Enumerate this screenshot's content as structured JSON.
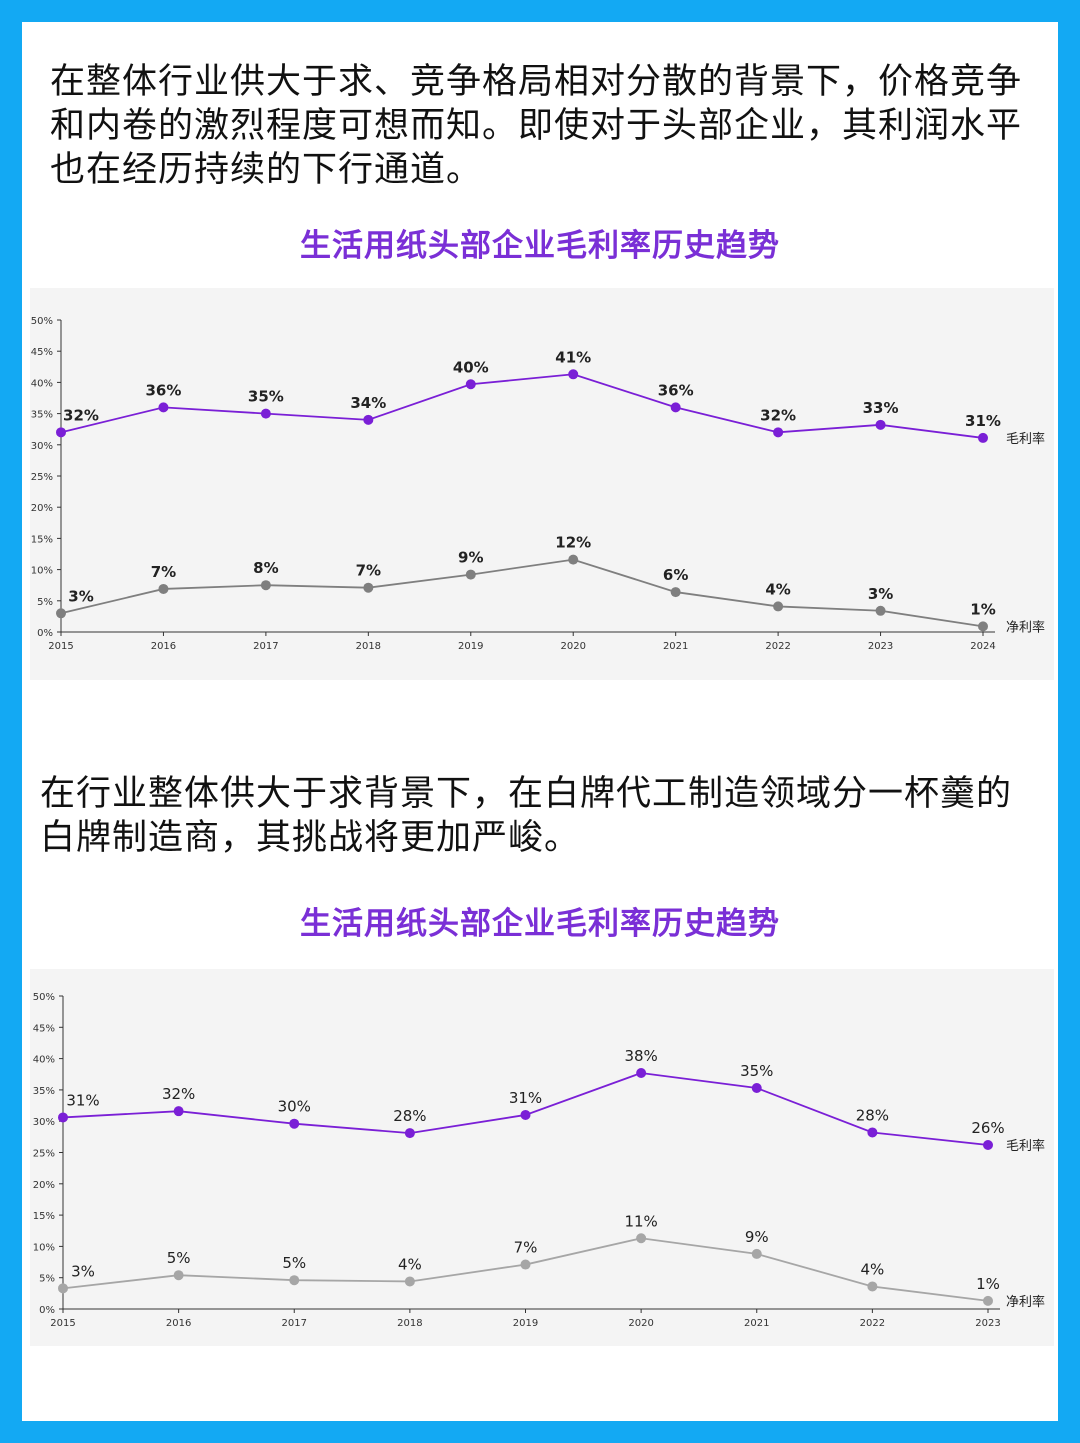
{
  "paragraphs": {
    "p1": "在整体行业供大于求、竞争格局相对分散的背景下，价格竞争和内卷的激烈程度可想而知。即使对于头部企业，其利润水平也在经历持续的下行通道。",
    "p2": "在行业整体供大于求背景下，在白牌代工制造领域分一杯羹的白牌制造商，其挑战将更加严峻。"
  },
  "chart_data": [
    {
      "type": "line",
      "title": "生活用纸头部企业毛利率历史趋势",
      "x": [
        "2015",
        "2016",
        "2017",
        "2018",
        "2019",
        "2020",
        "2021",
        "2022",
        "2023",
        "2024"
      ],
      "yticks": [
        "0%",
        "5%",
        "10%",
        "15%",
        "20%",
        "25%",
        "30%",
        "35%",
        "40%",
        "45%",
        "50%"
      ],
      "ylim": [
        0,
        50
      ],
      "grid": false,
      "legend": "inline-right",
      "label_style": "bold",
      "series": [
        {
          "name": "毛利率",
          "color": "#7a1fd6",
          "values": [
            32,
            36,
            35,
            34,
            39.7,
            41.3,
            36,
            32,
            33.2,
            31.1
          ],
          "labels": [
            "32%",
            "36%",
            "35%",
            "34%",
            "40%",
            "41%",
            "36%",
            "32%",
            "33%",
            "31%"
          ]
        },
        {
          "name": "净利率",
          "color": "#7f7f7f",
          "values": [
            3,
            6.9,
            7.5,
            7.1,
            9.2,
            11.6,
            6.4,
            4.1,
            3.4,
            0.9
          ],
          "labels": [
            "3%",
            "7%",
            "8%",
            "7%",
            "9%",
            "12%",
            "6%",
            "4%",
            "3%",
            "1%"
          ]
        }
      ]
    },
    {
      "type": "line",
      "title": "生活用纸头部企业毛利率历史趋势",
      "x": [
        "2015",
        "2016",
        "2017",
        "2018",
        "2019",
        "2020",
        "2021",
        "2022",
        "2023"
      ],
      "yticks": [
        "0%",
        "5%",
        "10%",
        "15%",
        "20%",
        "25%",
        "30%",
        "35%",
        "40%",
        "45%",
        "50%"
      ],
      "ylim": [
        0,
        50
      ],
      "grid": false,
      "legend": "inline-right",
      "label_style": "normal",
      "series": [
        {
          "name": "毛利率",
          "color": "#7a1fd6",
          "values": [
            30.6,
            31.6,
            29.6,
            28.1,
            31,
            37.7,
            35.3,
            28.2,
            26.2
          ],
          "labels": [
            "31%",
            "32%",
            "30%",
            "28%",
            "31%",
            "38%",
            "35%",
            "28%",
            "26%"
          ]
        },
        {
          "name": "净利率",
          "color": "#a6a6a6",
          "values": [
            3.3,
            5.4,
            4.6,
            4.4,
            7.1,
            11.3,
            8.8,
            3.6,
            1.3
          ],
          "labels": [
            "3%",
            "5%",
            "5%",
            "4%",
            "7%",
            "11%",
            "9%",
            "4%",
            "1%"
          ]
        }
      ]
    }
  ]
}
